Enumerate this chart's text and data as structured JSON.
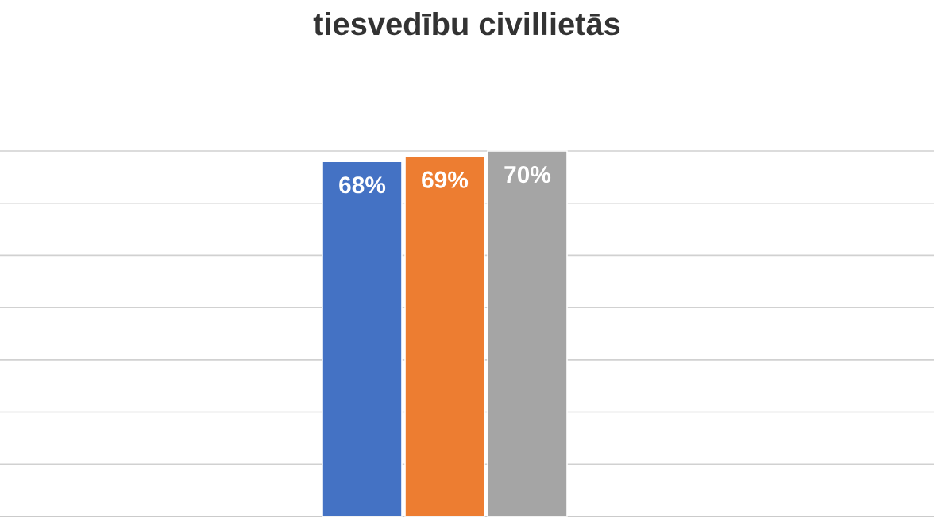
{
  "chart_data": {
    "type": "bar",
    "title": "tiesvedību civillietās",
    "categories": [
      null
    ],
    "series": [
      {
        "color": "#4472c4",
        "values": [
          68
        ],
        "value_labels": [
          "68%"
        ]
      },
      {
        "color": "#ed7d31",
        "values": [
          69
        ],
        "value_labels": [
          "69%"
        ]
      },
      {
        "color": "#a5a5a5",
        "values": [
          70
        ],
        "value_labels": [
          "70%"
        ]
      }
    ],
    "grid": "y"
  }
}
